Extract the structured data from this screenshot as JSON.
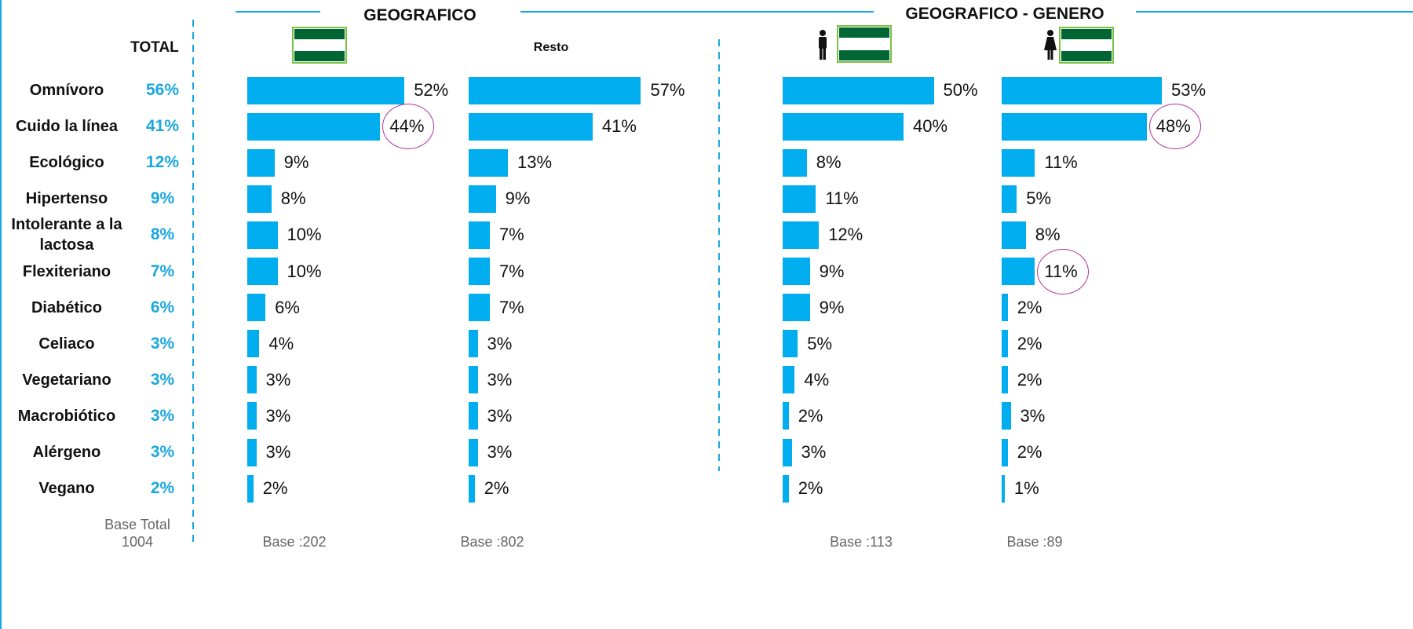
{
  "headers": {
    "geografico": "GEOGRAFICO",
    "geografico_genero": "GEOGRAFICO - GENERO"
  },
  "total": {
    "title": "TOTAL",
    "labels": [
      "56%",
      "41%",
      "12%",
      "9%",
      "8%",
      "7%",
      "6%",
      "3%",
      "3%",
      "3%",
      "3%",
      "2%"
    ],
    "base_label": "Base Total",
    "base_value": "1004"
  },
  "categories": [
    "Omnívoro",
    "Cuido la línea",
    "Ecológico",
    "Hipertenso",
    "Intolerante a la lactosa",
    "Flexiteriano",
    "Diabético",
    "Celiaco",
    "Vegetariano",
    "Macrobiótico",
    "Alérgeno",
    "Vegano"
  ],
  "chart_data": [
    {
      "type": "hbar",
      "color": "#00adee",
      "values": [
        52,
        44,
        9,
        8,
        10,
        10,
        6,
        4,
        3,
        3,
        3,
        2
      ],
      "value_labels": [
        "52%",
        "44%",
        "9%",
        "8%",
        "10%",
        "10%",
        "6%",
        "4%",
        "3%",
        "3%",
        "3%",
        "2%"
      ],
      "highlight": [
        1
      ],
      "base": "Base :202"
    },
    {
      "type": "hbar",
      "subtitle": "Resto",
      "color": "#00adee",
      "values": [
        57,
        41,
        13,
        9,
        7,
        7,
        7,
        3,
        3,
        3,
        3,
        2
      ],
      "value_labels": [
        "57%",
        "41%",
        "13%",
        "9%",
        "7%",
        "7%",
        "7%",
        "3%",
        "3%",
        "3%",
        "3%",
        "2%"
      ],
      "highlight": [],
      "base": "Base :802"
    },
    {
      "type": "hbar",
      "color": "#00adee",
      "values": [
        50,
        40,
        8,
        11,
        12,
        9,
        9,
        5,
        4,
        2,
        3,
        2
      ],
      "value_labels": [
        "50%",
        "40%",
        "8%",
        "11%",
        "12%",
        "9%",
        "9%",
        "5%",
        "4%",
        "2%",
        "3%",
        "2%"
      ],
      "highlight": [],
      "base": "Base :113"
    },
    {
      "type": "hbar",
      "color": "#00adee",
      "values": [
        53,
        48,
        11,
        5,
        8,
        11,
        2,
        2,
        2,
        3,
        2,
        1
      ],
      "value_labels": [
        "53%",
        "48%",
        "11%",
        "5%",
        "8%",
        "11%",
        "2%",
        "2%",
        "2%",
        "3%",
        "2%",
        "1%"
      ],
      "highlight": [
        1,
        5
      ],
      "base": "Base :89"
    }
  ]
}
